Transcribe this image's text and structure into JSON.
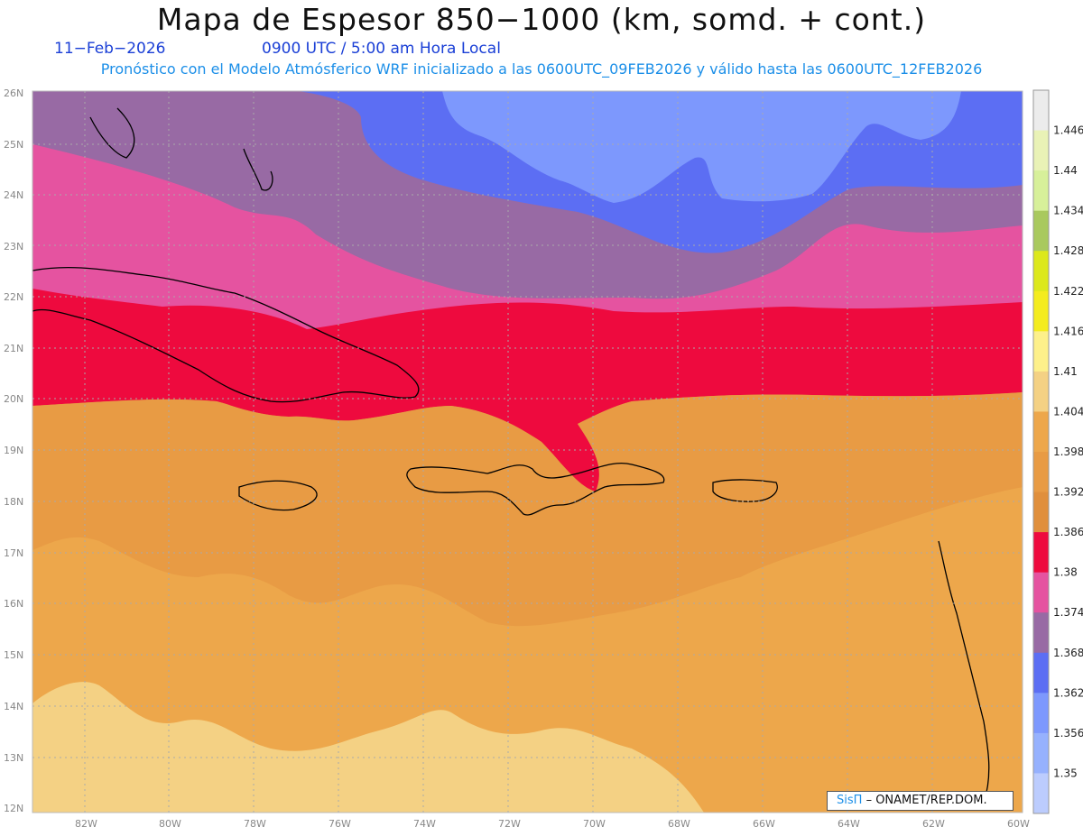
{
  "header": {
    "title": "Mapa de Espesor 850−1000 (km, somd. + cont.)",
    "date": "11−Feb−2026",
    "time": "0900 UTC / 5:00 am Hora Local",
    "forecast": "Pronóstico con el Modelo Atmósferico WRF inicializado a las 0600UTC_09FEB2026 y válido hasta las  0600UTC_12FEB2026"
  },
  "map": {
    "lat_labels": [
      "26N",
      "25N",
      "24N",
      "23N",
      "22N",
      "21N",
      "20N",
      "19N",
      "18N",
      "17N",
      "16N",
      "15N",
      "14N",
      "13N",
      "12N"
    ],
    "lon_labels": [
      "82W",
      "80W",
      "78W",
      "76W",
      "74W",
      "72W",
      "70W",
      "68W",
      "66W",
      "64W",
      "62W",
      "60W"
    ]
  },
  "colorbar": {
    "labels": [
      "1.446",
      "1.44",
      "1.434",
      "1.428",
      "1.422",
      "1.416",
      "1.41",
      "1.404",
      "1.398",
      "1.392",
      "1.386",
      "1.38",
      "1.374",
      "1.368",
      "1.362",
      "1.356",
      "1.35"
    ],
    "colors": [
      "#ececec",
      "#e9f2b6",
      "#d7f09a",
      "#a9c95e",
      "#dce81c",
      "#f4ec1e",
      "#fdf08a",
      "#f4d184",
      "#eda74b",
      "#e89b44",
      "#e08f3c",
      "#ee0a3e",
      "#e553a0",
      "#986aa4",
      "#5c6ef3",
      "#7d98fd",
      "#96b1fd",
      "#bcccfd"
    ]
  },
  "credit": {
    "brand": "SisΠ",
    "org": "– ONAMET/REP.DOM."
  }
}
